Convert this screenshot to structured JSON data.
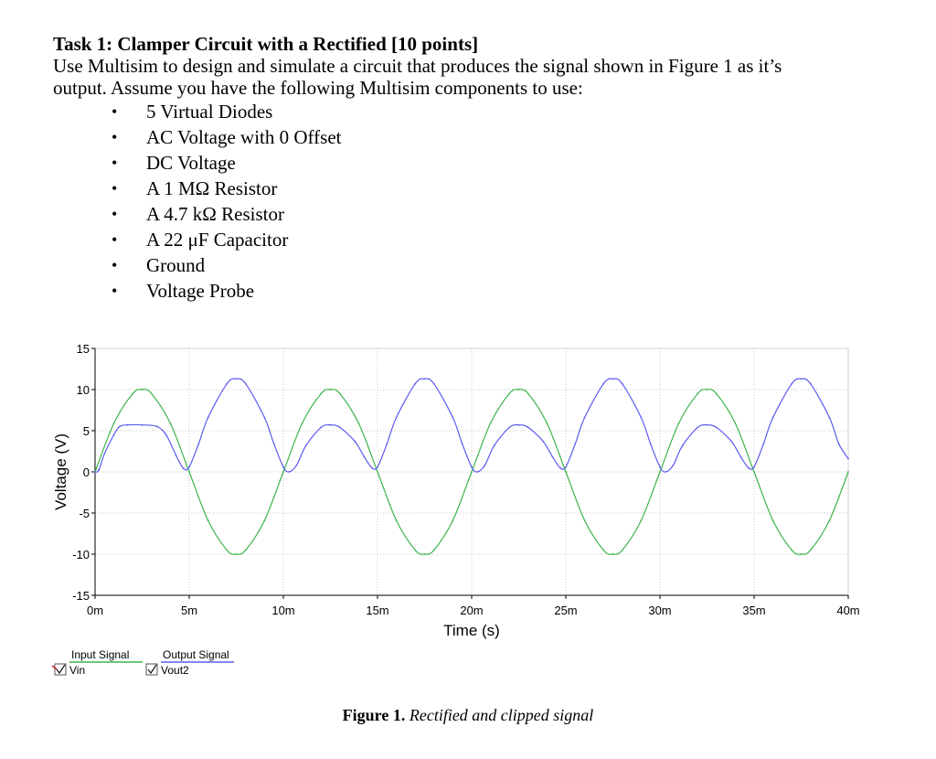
{
  "document": {
    "title": "Task 1: Clamper Circuit with a Rectified [10 points]",
    "intro_line1": "Use Multisim to design and simulate a circuit that produces the signal shown in Figure 1 as it’s",
    "intro_line2": "output. Assume you have the following Multisim components to use:",
    "components": [
      "5 Virtual Diodes",
      "AC Voltage with 0 Offset",
      "DC Voltage",
      "A 1 MΩ Resistor",
      "A 4.7 kΩ Resistor",
      "A 22 μF Capacitor",
      "Ground",
      "Voltage Probe"
    ],
    "bullet": "•"
  },
  "caption": {
    "label": "Figure 1.",
    "text": "Rectified and clipped signal"
  },
  "colors": {
    "input_signal": "#3cb44b",
    "output_signal": "#5b5bf0",
    "grid": "#c8c8c8",
    "axis": "#000000"
  },
  "chart_data": {
    "type": "line",
    "xlabel": "Time (s)",
    "ylabel": "Voltage (V)",
    "xlim": [
      0,
      40
    ],
    "ylim": [
      -15,
      15
    ],
    "xticks": [
      0,
      5,
      10,
      15,
      20,
      25,
      30,
      35,
      40
    ],
    "xtick_labels": [
      "0m",
      "5m",
      "10m",
      "15m",
      "20m",
      "25m",
      "30m",
      "35m",
      "40m"
    ],
    "yticks": [
      15,
      10,
      5,
      0,
      -5,
      -10,
      -15
    ],
    "ytick_labels": [
      "15",
      "10",
      "5",
      "0",
      "-5",
      "-10",
      "-15"
    ],
    "grid": true,
    "legend": [
      {
        "name": "Input Signal",
        "probe": "Vin",
        "checked": true
      },
      {
        "name": "Output Signal",
        "probe": "Vout2",
        "checked": true
      }
    ],
    "series": [
      {
        "name": "Input Signal",
        "x": [
          0,
          1,
          2,
          2.5,
          3,
          4,
          5,
          6,
          7,
          7.5,
          8,
          9,
          10,
          11,
          12,
          12.5,
          13,
          14,
          15,
          16,
          17,
          17.5,
          18,
          19,
          20,
          21,
          22,
          22.5,
          23,
          24,
          25,
          26,
          27,
          27.5,
          28,
          29,
          30,
          31,
          32,
          32.5,
          33,
          34,
          35,
          36,
          37,
          37.5,
          38,
          39,
          40
        ],
        "values": [
          0,
          5.9,
          9.5,
          10,
          9.5,
          5.9,
          0,
          -5.9,
          -9.5,
          -10,
          -9.5,
          -5.9,
          0,
          5.9,
          9.5,
          10,
          9.5,
          5.9,
          0,
          -5.9,
          -9.5,
          -10,
          -9.5,
          -5.9,
          0,
          5.9,
          9.5,
          10,
          9.5,
          5.9,
          0,
          -5.9,
          -9.5,
          -10,
          -9.5,
          -5.9,
          0,
          5.9,
          9.5,
          10,
          9.5,
          5.9,
          0,
          -5.9,
          -9.5,
          -10,
          -9.5,
          -5.9,
          0
        ]
      },
      {
        "name": "Output Signal",
        "x": [
          0,
          0.2,
          0.5,
          1,
          1.3,
          1.7,
          2.5,
          3.3,
          3.8,
          4.3,
          4.7,
          5,
          5.5,
          6,
          7,
          7.5,
          8,
          9,
          9.5,
          10,
          10.3,
          10.7,
          11.2,
          12,
          12.5,
          13,
          13.8,
          14.3,
          14.7,
          15,
          15.5,
          16,
          17,
          17.5,
          18,
          19,
          19.5,
          20,
          20.3,
          20.7,
          21.2,
          22,
          22.5,
          23,
          23.8,
          24.3,
          24.7,
          25,
          25.5,
          26,
          27,
          27.5,
          28,
          29,
          29.5,
          30,
          30.3,
          30.7,
          31.2,
          32,
          32.5,
          33,
          33.8,
          34.3,
          34.7,
          35,
          35.5,
          36,
          37,
          37.5,
          38,
          39,
          39.5,
          40
        ],
        "values": [
          0,
          0.2,
          2.2,
          4.5,
          5.5,
          5.7,
          5.7,
          5.5,
          4.4,
          2,
          0.4,
          0.6,
          3.4,
          6.6,
          10.7,
          11.3,
          10.7,
          6.6,
          3.4,
          0.6,
          0,
          0.8,
          3.2,
          5.4,
          5.7,
          5.4,
          3.7,
          1.8,
          0.5,
          0.6,
          3.4,
          6.6,
          10.7,
          11.3,
          10.7,
          6.6,
          3.4,
          0.6,
          0,
          0.8,
          3.2,
          5.4,
          5.7,
          5.4,
          3.7,
          1.8,
          0.5,
          0.6,
          3.4,
          6.6,
          10.7,
          11.3,
          10.7,
          6.6,
          3.4,
          0.6,
          0,
          0.8,
          3.2,
          5.4,
          5.7,
          5.4,
          3.7,
          1.8,
          0.5,
          0.6,
          3.4,
          6.6,
          10.7,
          11.3,
          10.7,
          6.6,
          3.4,
          1.6
        ]
      }
    ]
  }
}
